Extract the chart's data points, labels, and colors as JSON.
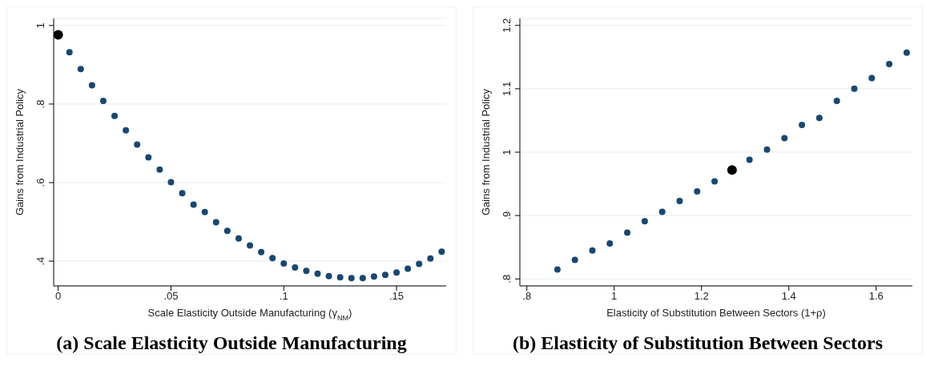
{
  "chart_data": [
    {
      "type": "scatter",
      "title": "(a) Scale Elasticity Outside Manufacturing",
      "xlabel": "Scale Elasticity Outside Manufacturing (γ$_{NM}$)",
      "ylabel": "Gains from Industrial Policy",
      "marker": "circle",
      "grid": "y",
      "xlim": [
        -0.002,
        0.172
      ],
      "xticks": [
        0,
        {
          "value": 0.05,
          "label": ".05"
        },
        {
          "value": 0.1,
          "label": ".1"
        },
        {
          "value": 0.15,
          "label": ".15"
        }
      ],
      "ylim": [
        0.337,
        1.018
      ],
      "yticks": [
        {
          "value": 0.4,
          "label": ".4"
        },
        {
          "value": 0.6,
          "label": ".6"
        },
        {
          "value": 0.8,
          "label": ".8"
        },
        1
      ],
      "series": [
        {
          "color": "#1a476f",
          "x": [
            0.005,
            0.01,
            0.015,
            0.02,
            0.025,
            0.03,
            0.035,
            0.04,
            0.045,
            0.05,
            0.055,
            0.06,
            0.065,
            0.07,
            0.075,
            0.08,
            0.085,
            0.09,
            0.095,
            0.1,
            0.105,
            0.11,
            0.115,
            0.12,
            0.125,
            0.13,
            0.135,
            0.14,
            0.145,
            0.15,
            0.155,
            0.16,
            0.165,
            0.17
          ],
          "values": [
            0.932,
            0.889,
            0.848,
            0.808,
            0.77,
            0.733,
            0.697,
            0.664,
            0.633,
            0.601,
            0.573,
            0.544,
            0.525,
            0.499,
            0.477,
            0.458,
            0.44,
            0.423,
            0.408,
            0.394,
            0.384,
            0.375,
            0.368,
            0.362,
            0.359,
            0.357,
            0.357,
            0.361,
            0.365,
            0.371,
            0.381,
            0.393,
            0.407,
            0.424
          ]
        },
        {
          "color": "#000000",
          "x": [
            0
          ],
          "values": [
            0.976
          ]
        }
      ]
    },
    {
      "type": "scatter",
      "title": "(b) Elasticity of Substitution Between Sectors",
      "xlabel": "Elasticity of Substitution Between Sectors (1+ρ)",
      "ylabel": "Gains from Industrial Policy",
      "marker": "circle",
      "grid": "y",
      "xlim": [
        0.784,
        1.683
      ],
      "xticks": [
        {
          "value": 0.8,
          "label": ".8"
        },
        1,
        1.2,
        1.4,
        1.6
      ],
      "ylim": [
        0.789,
        1.211
      ],
      "yticks": [
        {
          "value": 0.8,
          "label": ".8"
        },
        {
          "value": 0.9,
          "label": ".9"
        },
        1,
        1.1,
        1.2
      ],
      "series": [
        {
          "color": "#1a476f",
          "x": [
            0.87,
            0.91,
            0.95,
            0.99,
            1.03,
            1.07,
            1.11,
            1.15,
            1.19,
            1.23,
            1.31,
            1.35,
            1.39,
            1.43,
            1.47,
            1.51,
            1.55,
            1.59,
            1.63,
            1.67
          ],
          "values": [
            0.815,
            0.83,
            0.845,
            0.856,
            0.873,
            0.891,
            0.906,
            0.923,
            0.938,
            0.954,
            0.988,
            1.004,
            1.022,
            1.043,
            1.054,
            1.081,
            1.1,
            1.117,
            1.139,
            1.157
          ]
        },
        {
          "color": "#000000",
          "x": [
            1.27
          ],
          "values": [
            0.972
          ]
        }
      ]
    }
  ]
}
